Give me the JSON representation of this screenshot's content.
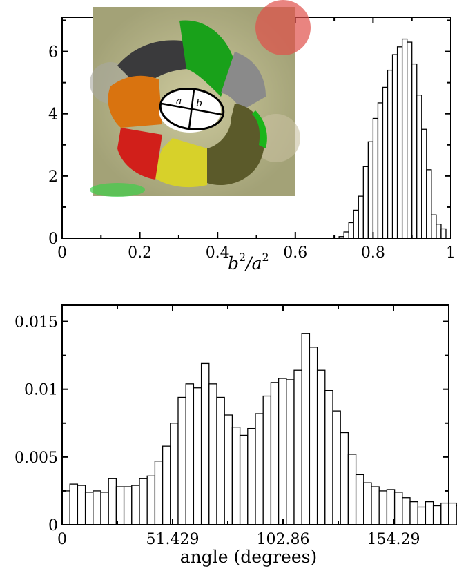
{
  "chart_data": [
    {
      "type": "bar",
      "title": "",
      "xlabel_base": "b",
      "xlabel_sup1": "2",
      "xlabel_slash": "/a",
      "xlabel_sup2": "2",
      "ylabel": "",
      "xlim": [
        0,
        1
      ],
      "ylim": [
        0,
        7.1
      ],
      "xticks": [
        "0",
        "0.2",
        "0.4",
        "0.6",
        "0.8",
        "1"
      ],
      "xtick_values": [
        0,
        0.2,
        0.4,
        0.6,
        0.8,
        1
      ],
      "yticks": [
        "0",
        "2",
        "4",
        "6"
      ],
      "ytick_values": [
        0,
        2,
        4,
        6
      ],
      "bin_width": 0.0125,
      "bin_edges_start": 0.7125,
      "values": [
        0.05,
        0.2,
        0.5,
        0.9,
        1.35,
        2.3,
        3.1,
        3.85,
        4.35,
        4.85,
        5.4,
        5.9,
        6.15,
        6.4,
        6.3,
        5.6,
        4.6,
        3.5,
        2.2,
        0.75,
        0.45,
        0.3
      ],
      "grid": false,
      "legend": "none",
      "inset": {
        "kind": "molecular-surface-image",
        "axis_labels": [
          "a",
          "b"
        ]
      }
    },
    {
      "type": "bar",
      "title": "",
      "xlabel": "angle (degrees)",
      "ylabel": "",
      "xlim": [
        0,
        180
      ],
      "ylim": [
        0,
        0.0162
      ],
      "xticks": [
        "0",
        "51.429",
        "102.86",
        "154.29"
      ],
      "xtick_values": [
        0,
        51.429,
        102.86,
        154.29
      ],
      "yticks": [
        "0",
        "0.005",
        "0.01",
        "0.015"
      ],
      "ytick_values": [
        0,
        0.005,
        0.01,
        0.015
      ],
      "bin_width": 3.6,
      "values": [
        0.0025,
        0.003,
        0.0029,
        0.0024,
        0.0025,
        0.0024,
        0.0034,
        0.0028,
        0.0028,
        0.0029,
        0.0034,
        0.0036,
        0.0047,
        0.0058,
        0.0075,
        0.0094,
        0.0104,
        0.0101,
        0.0119,
        0.0104,
        0.0094,
        0.0081,
        0.0072,
        0.0066,
        0.0071,
        0.0082,
        0.0095,
        0.0105,
        0.0108,
        0.0107,
        0.0114,
        0.0141,
        0.0131,
        0.0114,
        0.0099,
        0.0084,
        0.0068,
        0.0052,
        0.0037,
        0.0031,
        0.0028,
        0.0025,
        0.0026,
        0.0024,
        0.002,
        0.0017,
        0.0013,
        0.0017,
        0.0014,
        0.0016,
        0.0016,
        0.0014,
        0.0017,
        0.0019,
        0.0022
      ]
    }
  ]
}
